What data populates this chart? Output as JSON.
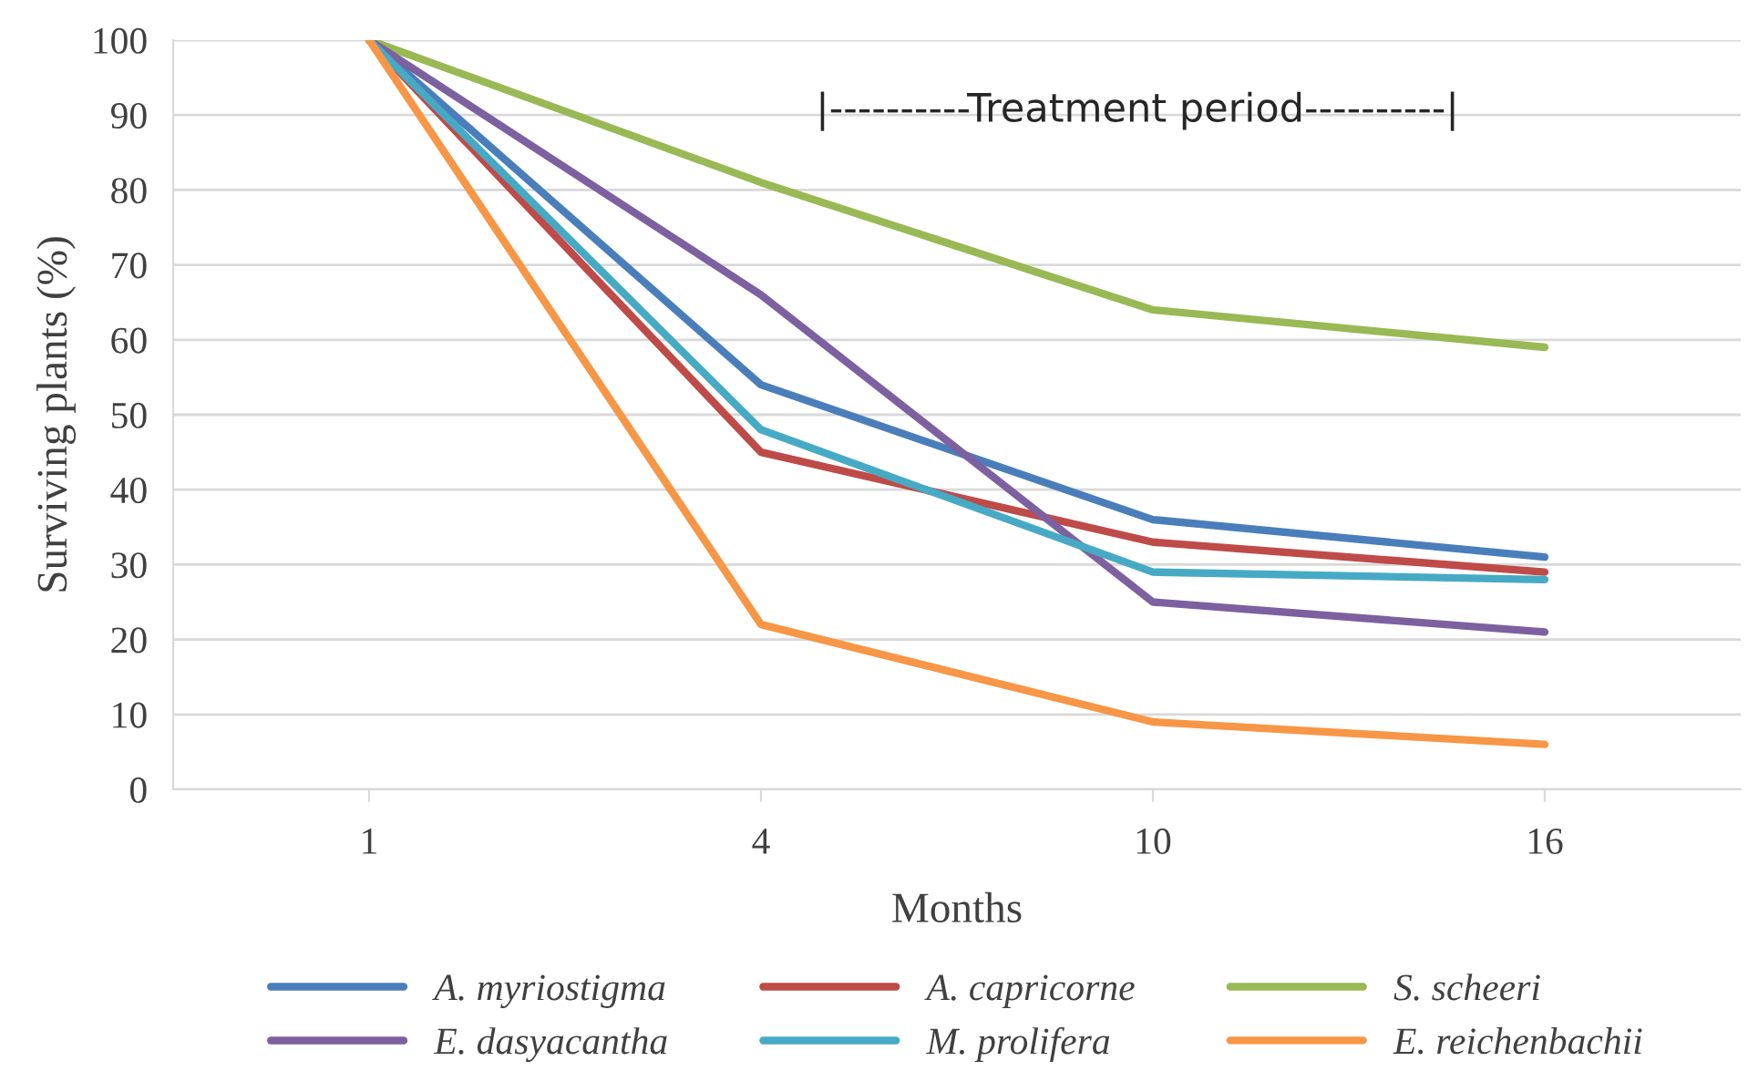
{
  "chart_data": {
    "type": "line",
    "xlabel": "Months",
    "ylabel": "Surviving plants (%)",
    "categories": [
      "1",
      "4",
      "10",
      "16"
    ],
    "ylim": [
      0,
      100
    ],
    "yticks": [
      0,
      10,
      20,
      30,
      40,
      50,
      60,
      70,
      80,
      90,
      100
    ],
    "grid": "y",
    "legend": "bottom",
    "marker": "none",
    "line_style": "solid",
    "annotations": [
      "|----------Treatment period----------|"
    ],
    "series": [
      {
        "name": "A. myriostigma",
        "color": "#4a7ebb",
        "values": [
          100,
          54,
          36,
          31
        ]
      },
      {
        "name": "A. capricorne",
        "color": "#be4b48",
        "values": [
          100,
          45,
          33,
          29
        ]
      },
      {
        "name": "S. scheeri",
        "color": "#98b954",
        "values": [
          100,
          81,
          64,
          59
        ]
      },
      {
        "name": "E. dasyacantha",
        "color": "#7d60a0",
        "values": [
          100,
          66,
          25,
          21
        ]
      },
      {
        "name": "M. prolifera",
        "color": "#46aac5",
        "values": [
          100,
          48,
          29,
          28
        ]
      },
      {
        "name": "E. reichenbachii",
        "color": "#f79646",
        "values": [
          100,
          22,
          9,
          6
        ]
      }
    ]
  }
}
